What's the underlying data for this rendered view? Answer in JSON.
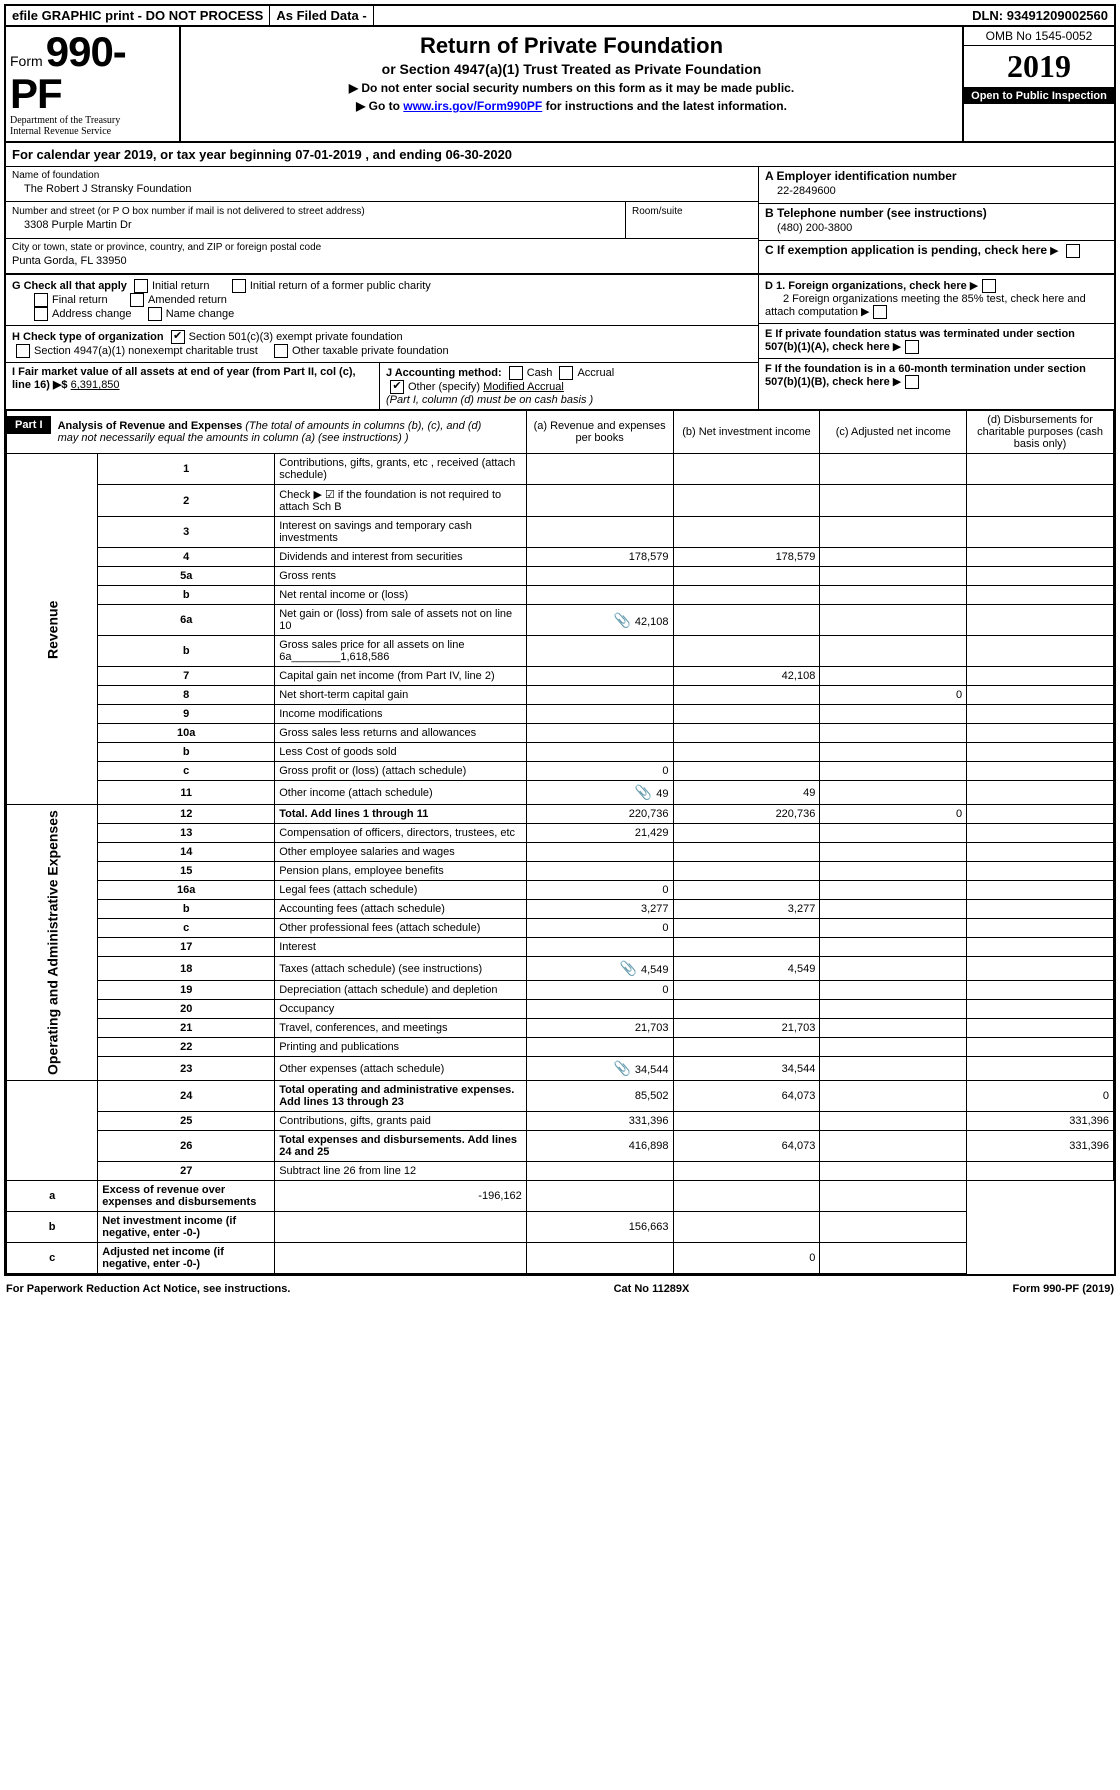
{
  "topbar": {
    "efile": "efile GRAPHIC print - DO NOT PROCESS",
    "asfiled": "As Filed Data -",
    "dln_label": "DLN:",
    "dln": "93491209002560"
  },
  "header": {
    "form_word": "Form",
    "form_no": "990-PF",
    "dept1": "Department of the Treasury",
    "dept2": "Internal Revenue Service",
    "title": "Return of Private Foundation",
    "subtitle": "or Section 4947(a)(1) Trust Treated as Private Foundation",
    "note1": "▶ Do not enter social security numbers on this form as it may be made public.",
    "note2_pre": "▶ Go to ",
    "note2_link": "www.irs.gov/Form990PF",
    "note2_post": " for instructions and the latest information.",
    "omb": "OMB No 1545-0052",
    "year": "2019",
    "open": "Open to Public Inspection"
  },
  "calendar": {
    "text_pre": "For calendar year 2019, or tax year beginning ",
    "begin": "07-01-2019",
    "text_mid": " , and ending ",
    "end": "06-30-2020"
  },
  "info": {
    "name_lbl": "Name of foundation",
    "name": "The Robert J Stransky Foundation",
    "addr_lbl": "Number and street (or P O  box number if mail is not delivered to street address)",
    "room_lbl": "Room/suite",
    "addr": "3308 Purple Martin Dr",
    "city_lbl": "City or town, state or province, country, and ZIP or foreign postal code",
    "city": "Punta Gorda, FL  33950",
    "a_lbl": "A Employer identification number",
    "a_val": "22-2849600",
    "b_lbl": "B Telephone number (see instructions)",
    "b_val": "(480) 200-3800",
    "c_lbl": "C If exemption application is pending, check here"
  },
  "g": {
    "label": "G Check all that apply",
    "initial": "Initial return",
    "final": "Final return",
    "addr": "Address change",
    "initial_fmr": "Initial return of a former public charity",
    "amended": "Amended return",
    "name": "Name change"
  },
  "h": {
    "label": "H Check type of organization",
    "s501": "Section 501(c)(3) exempt private foundation",
    "s4947": "Section 4947(a)(1) nonexempt charitable trust",
    "other": "Other taxable private foundation"
  },
  "i": {
    "label": "I Fair market value of all assets at end of year (from Part II, col  (c), line 16) ▶$",
    "val": "6,391,850"
  },
  "j": {
    "label": "J Accounting method:",
    "cash": "Cash",
    "accrual": "Accrual",
    "other": "Other (specify)",
    "other_val": "Modified Accrual",
    "note": "(Part I, column (d) must be on cash basis )"
  },
  "d": {
    "d1": "D 1. Foreign organizations, check here",
    "d2": "2 Foreign organizations meeting the 85% test, check here and attach computation",
    "e": "E  If private foundation status was terminated under section 507(b)(1)(A), check here",
    "f": "F  If the foundation is in a 60-month termination under section 507(b)(1)(B), check here"
  },
  "part1": {
    "title": "Part I",
    "headline": "Analysis of Revenue and Expenses",
    "sub": "(The total of amounts in columns (b), (c), and (d) may not necessarily equal the amounts in column (a) (see instructions) )",
    "col_a": "(a)  Revenue and expenses per books",
    "col_b": "(b) Net investment income",
    "col_c": "(c) Adjusted net income",
    "col_d": "(d) Disbursements for charitable purposes (cash basis only)"
  },
  "sidelabels": {
    "revenue": "Revenue",
    "expenses": "Operating and Administrative Expenses"
  },
  "rows": [
    {
      "n": "1",
      "label": "Contributions, gifts, grants, etc , received (attach schedule)",
      "a": "",
      "b": "",
      "c": "",
      "d": ""
    },
    {
      "n": "2",
      "label": "Check ▶ ☑ if the foundation is not required to attach Sch  B",
      "a": "",
      "b": "",
      "c": "",
      "d": ""
    },
    {
      "n": "3",
      "label": "Interest on savings and temporary cash investments",
      "a": "",
      "b": "",
      "c": "",
      "d": ""
    },
    {
      "n": "4",
      "label": "Dividends and interest from securities",
      "a": "178,579",
      "b": "178,579",
      "c": "",
      "d": ""
    },
    {
      "n": "5a",
      "label": "Gross rents",
      "a": "",
      "b": "",
      "c": "",
      "d": ""
    },
    {
      "n": "b",
      "label": "Net rental income or (loss)",
      "a": "",
      "b": "",
      "c": "",
      "d": ""
    },
    {
      "n": "6a",
      "label": "Net gain or (loss) from sale of assets not on line 10",
      "a": "42,108",
      "b": "",
      "c": "",
      "d": "",
      "wavy": true
    },
    {
      "n": "b",
      "label": "Gross sales price for all assets on line 6a________1,618,586",
      "a": "",
      "b": "",
      "c": "",
      "d": ""
    },
    {
      "n": "7",
      "label": "Capital gain net income (from Part IV, line 2)",
      "a": "",
      "b": "42,108",
      "c": "",
      "d": ""
    },
    {
      "n": "8",
      "label": "Net short-term capital gain",
      "a": "",
      "b": "",
      "c": "0",
      "d": ""
    },
    {
      "n": "9",
      "label": "Income modifications",
      "a": "",
      "b": "",
      "c": "",
      "d": ""
    },
    {
      "n": "10a",
      "label": "Gross sales less returns and allowances",
      "a": "",
      "b": "",
      "c": "",
      "d": ""
    },
    {
      "n": "b",
      "label": "Less  Cost of goods sold",
      "a": "",
      "b": "",
      "c": "",
      "d": ""
    },
    {
      "n": "c",
      "label": "Gross profit or (loss) (attach schedule)",
      "a": "0",
      "b": "",
      "c": "",
      "d": ""
    },
    {
      "n": "11",
      "label": "Other income (attach schedule)",
      "a": "49",
      "b": "49",
      "c": "",
      "d": "",
      "wavy": true
    },
    {
      "n": "12",
      "label": "Total. Add lines 1 through 11",
      "a": "220,736",
      "b": "220,736",
      "c": "0",
      "d": "",
      "bold": true
    },
    {
      "n": "13",
      "label": "Compensation of officers, directors, trustees, etc",
      "a": "21,429",
      "b": "",
      "c": "",
      "d": ""
    },
    {
      "n": "14",
      "label": "Other employee salaries and wages",
      "a": "",
      "b": "",
      "c": "",
      "d": ""
    },
    {
      "n": "15",
      "label": "Pension plans, employee benefits",
      "a": "",
      "b": "",
      "c": "",
      "d": ""
    },
    {
      "n": "16a",
      "label": "Legal fees (attach schedule)",
      "a": "0",
      "b": "",
      "c": "",
      "d": ""
    },
    {
      "n": "b",
      "label": "Accounting fees (attach schedule)",
      "a": "3,277",
      "b": "3,277",
      "c": "",
      "d": ""
    },
    {
      "n": "c",
      "label": "Other professional fees (attach schedule)",
      "a": "0",
      "b": "",
      "c": "",
      "d": ""
    },
    {
      "n": "17",
      "label": "Interest",
      "a": "",
      "b": "",
      "c": "",
      "d": ""
    },
    {
      "n": "18",
      "label": "Taxes (attach schedule) (see instructions)",
      "a": "4,549",
      "b": "4,549",
      "c": "",
      "d": "",
      "wavy": true
    },
    {
      "n": "19",
      "label": "Depreciation (attach schedule) and depletion",
      "a": "0",
      "b": "",
      "c": "",
      "d": ""
    },
    {
      "n": "20",
      "label": "Occupancy",
      "a": "",
      "b": "",
      "c": "",
      "d": ""
    },
    {
      "n": "21",
      "label": "Travel, conferences, and meetings",
      "a": "21,703",
      "b": "21,703",
      "c": "",
      "d": ""
    },
    {
      "n": "22",
      "label": "Printing and publications",
      "a": "",
      "b": "",
      "c": "",
      "d": ""
    },
    {
      "n": "23",
      "label": "Other expenses (attach schedule)",
      "a": "34,544",
      "b": "34,544",
      "c": "",
      "d": "",
      "wavy": true
    },
    {
      "n": "24",
      "label": "Total operating and administrative expenses. Add lines 13 through 23",
      "a": "85,502",
      "b": "64,073",
      "c": "",
      "d": "0",
      "bold": true
    },
    {
      "n": "25",
      "label": "Contributions, gifts, grants paid",
      "a": "331,396",
      "b": "",
      "c": "",
      "d": "331,396"
    },
    {
      "n": "26",
      "label": "Total expenses and disbursements. Add lines 24 and 25",
      "a": "416,898",
      "b": "64,073",
      "c": "",
      "d": "331,396",
      "bold": true
    },
    {
      "n": "27",
      "label": "Subtract line 26 from line 12",
      "a": "",
      "b": "",
      "c": "",
      "d": ""
    },
    {
      "n": "a",
      "label": "Excess of revenue over expenses and disbursements",
      "a": "-196,162",
      "b": "",
      "c": "",
      "d": "",
      "bold": true
    },
    {
      "n": "b",
      "label": "Net investment income (if negative, enter -0-)",
      "a": "",
      "b": "156,663",
      "c": "",
      "d": "",
      "bold": true
    },
    {
      "n": "c",
      "label": "Adjusted net income (if negative, enter -0-)",
      "a": "",
      "b": "",
      "c": "0",
      "d": "",
      "bold": true
    }
  ],
  "footer": {
    "left": "For Paperwork Reduction Act Notice, see instructions.",
    "mid": "Cat  No  11289X",
    "right": "Form 990-PF (2019)"
  }
}
